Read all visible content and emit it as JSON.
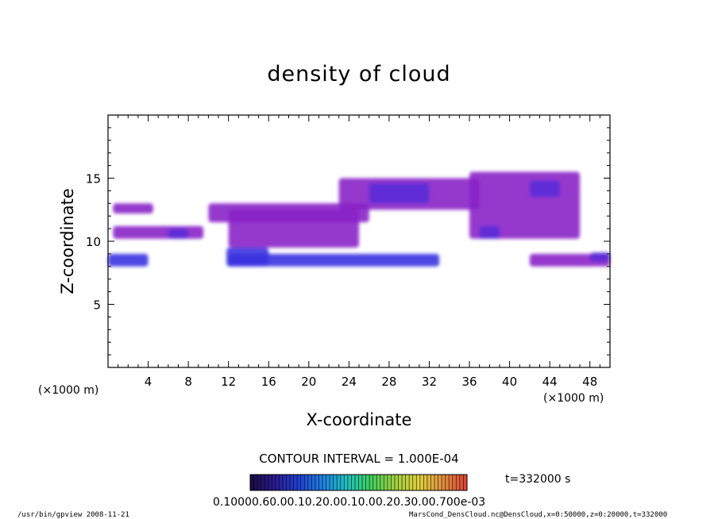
{
  "chart_data": {
    "type": "heatmap",
    "title": "density of cloud",
    "xlabel": "X-coordinate",
    "ylabel": "Z-coordinate",
    "x_unit": "(×1000 m)",
    "x_unit_right": "(×1000 m)",
    "xlim": [
      0,
      50
    ],
    "ylim": [
      0,
      20
    ],
    "x_ticks": [
      "4",
      "8",
      "12",
      "16",
      "20",
      "24",
      "28",
      "32",
      "36",
      "40",
      "44",
      "48"
    ],
    "x_tick_values": [
      4,
      8,
      12,
      16,
      20,
      24,
      28,
      32,
      36,
      40,
      44,
      48
    ],
    "y_ticks": [
      "5",
      "10",
      "15"
    ],
    "y_tick_values": [
      5,
      10,
      15
    ],
    "contour_interval": "CONTOUR INTERVAL = 1.000E-04",
    "time_label": "t=332000 s",
    "colorbar_labels": "0.10000.60.00.10.20.00.10.00.20.30.00.700e-03",
    "colorbar_colors": [
      "#1a0a40",
      "#2a1a90",
      "#2040d0",
      "#2080e0",
      "#20c0c0",
      "#40d060",
      "#a0d040",
      "#e0d040",
      "#e09040",
      "#e04030"
    ],
    "footer_left": "/usr/bin/gpview   2008-11-21",
    "footer_right": "MarsCond_DensCloud.nc@DensCloud,x=0:50000,z=0:20000,t=332000",
    "cloud_regions": [
      {
        "x": [
          0,
          4
        ],
        "z": [
          8,
          9
        ],
        "level": "high"
      },
      {
        "x": [
          0.5,
          4.5
        ],
        "z": [
          12.2,
          13
        ],
        "level": "low"
      },
      {
        "x": [
          0.5,
          9.5
        ],
        "z": [
          10.2,
          11.2
        ],
        "level": "low"
      },
      {
        "x": [
          6,
          8
        ],
        "z": [
          10.2,
          11
        ],
        "level": "mid"
      },
      {
        "x": [
          11.8,
          16
        ],
        "z": [
          8,
          9.5
        ],
        "level": "high"
      },
      {
        "x": [
          12,
          33
        ],
        "z": [
          8,
          9
        ],
        "level": "high"
      },
      {
        "x": [
          10,
          26
        ],
        "z": [
          11.5,
          13
        ],
        "level": "low"
      },
      {
        "x": [
          12,
          25
        ],
        "z": [
          9.5,
          12.5
        ],
        "level": "low"
      },
      {
        "x": [
          23,
          37
        ],
        "z": [
          12.5,
          15
        ],
        "level": "low"
      },
      {
        "x": [
          26,
          32
        ],
        "z": [
          13,
          14.6
        ],
        "level": "mid"
      },
      {
        "x": [
          36,
          47
        ],
        "z": [
          10.2,
          15.5
        ],
        "level": "low"
      },
      {
        "x": [
          37,
          39
        ],
        "z": [
          10.2,
          11.2
        ],
        "level": "mid"
      },
      {
        "x": [
          42,
          45
        ],
        "z": [
          13.5,
          14.8
        ],
        "level": "mid"
      },
      {
        "x": [
          42,
          50
        ],
        "z": [
          8,
          9
        ],
        "level": "low"
      },
      {
        "x": [
          48,
          50
        ],
        "z": [
          8.4,
          9.1
        ],
        "level": "mid"
      }
    ]
  }
}
